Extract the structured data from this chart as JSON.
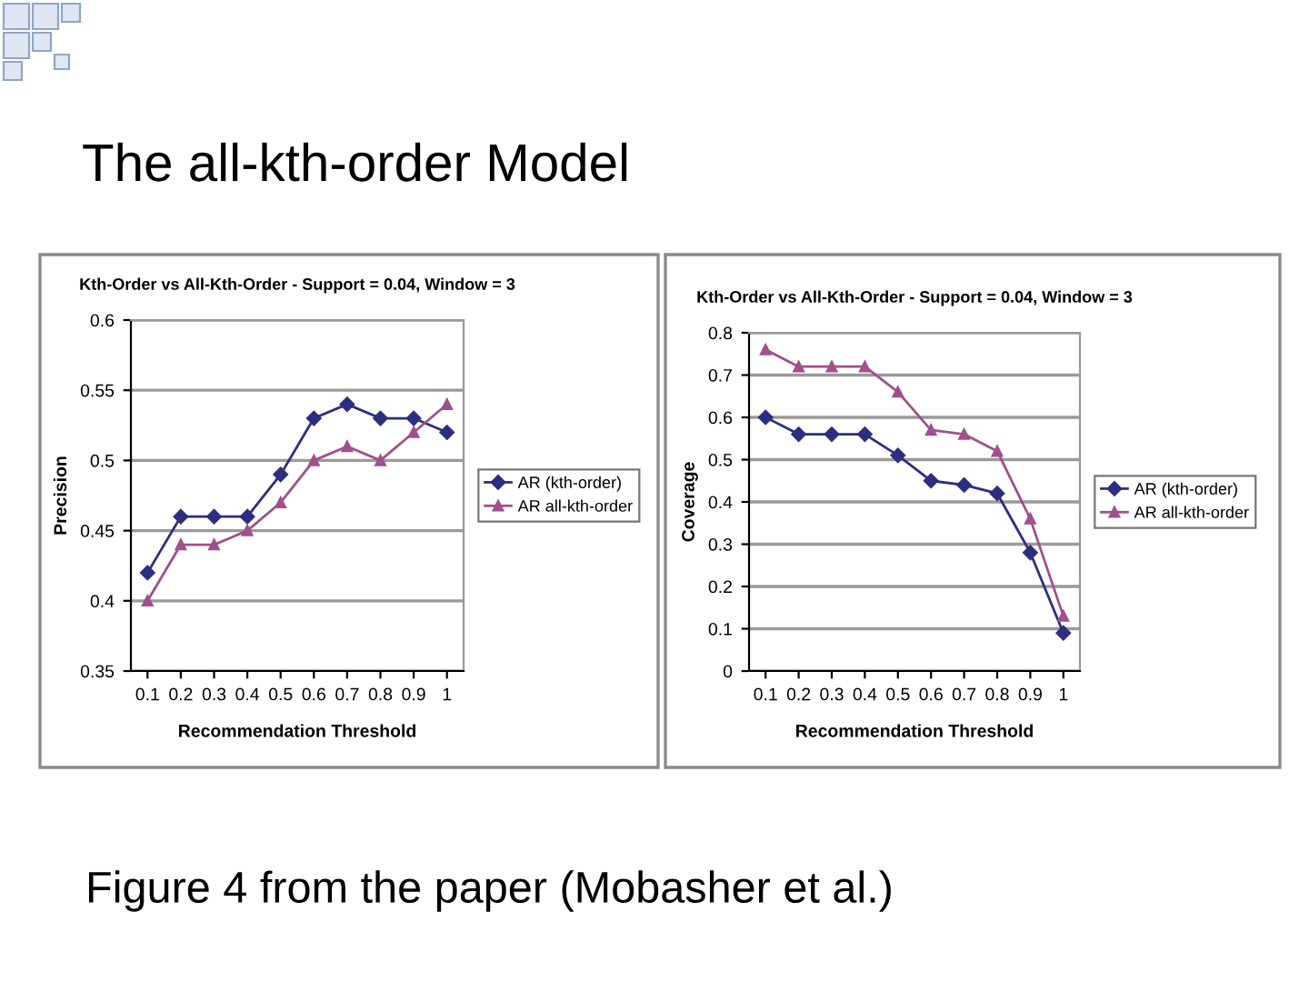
{
  "chart_data": [
    {
      "type": "other",
      "title": "The all-kth-order Model",
      "annotations": [
        "Figure 4 from the paper (Mobasher et al.)"
      ]
    },
    {
      "type": "line",
      "title": "Kth-Order vs All-Kth-Order - Support = 0.04, Window = 3",
      "xlabel": "Recommendation Threshold",
      "ylabel": "Precision",
      "categories": [
        "0.1",
        "0.2",
        "0.3",
        "0.4",
        "0.5",
        "0.6",
        "0.7",
        "0.8",
        "0.9",
        "1"
      ],
      "series": [
        {
          "name": "AR (kth-order)",
          "color": "#2e2e80",
          "marker": "diamond",
          "values": [
            0.42,
            0.46,
            0.46,
            0.46,
            0.49,
            0.53,
            0.54,
            0.53,
            0.53,
            0.52
          ]
        },
        {
          "name": "AR all-kth-order",
          "color": "#a0508c",
          "marker": "triangle",
          "values": [
            0.4,
            0.44,
            0.44,
            0.45,
            0.47,
            0.5,
            0.51,
            0.5,
            0.52,
            0.54
          ]
        }
      ],
      "ylim": [
        0.35,
        0.6
      ],
      "yticks": [
        0.35,
        0.4,
        0.45,
        0.5,
        0.55,
        0.6
      ],
      "grid": "y",
      "legend": "right",
      "line_style": "solid"
    },
    {
      "type": "line",
      "title": "Kth-Order vs All-Kth-Order - Support = 0.04, Window = 3",
      "xlabel": "Recommendation Threshold",
      "ylabel": "Coverage",
      "categories": [
        "0.1",
        "0.2",
        "0.3",
        "0.4",
        "0.5",
        "0.6",
        "0.7",
        "0.8",
        "0.9",
        "1"
      ],
      "series": [
        {
          "name": "AR (kth-order)",
          "color": "#2e2e80",
          "marker": "diamond",
          "values": [
            0.6,
            0.56,
            0.56,
            0.56,
            0.51,
            0.45,
            0.44,
            0.42,
            0.28,
            0.09
          ]
        },
        {
          "name": "AR all-kth-order",
          "color": "#a0508c",
          "marker": "triangle",
          "values": [
            0.76,
            0.72,
            0.72,
            0.72,
            0.66,
            0.57,
            0.56,
            0.52,
            0.36,
            0.13
          ]
        }
      ],
      "ylim": [
        0,
        0.8
      ],
      "yticks": [
        0,
        0.1,
        0.2,
        0.3,
        0.4,
        0.5,
        0.6,
        0.7,
        0.8
      ],
      "grid": "y",
      "legend": "right",
      "line_style": "solid"
    }
  ]
}
